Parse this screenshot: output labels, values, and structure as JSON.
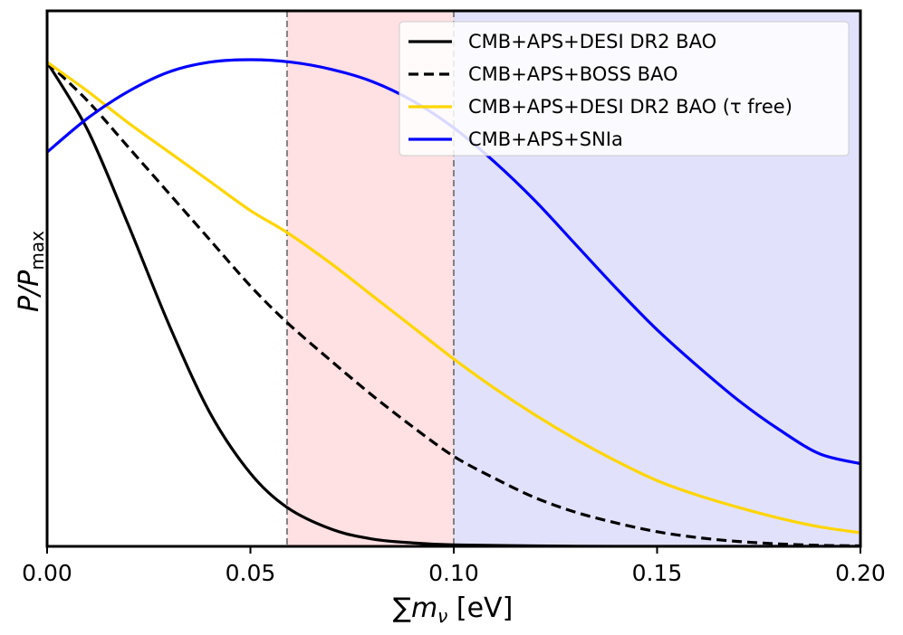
{
  "chart_data": {
    "type": "line",
    "title": "",
    "xlabel_symbol": "∑",
    "xlabel_var": "m",
    "xlabel_sub": "ν",
    "xlabel_unit": " [eV]",
    "ylabel_main": "P/P",
    "ylabel_sub": "max",
    "xlim": [
      0.0,
      0.2
    ],
    "ylim": [
      0.0,
      1.0
    ],
    "xticks": [
      0.0,
      0.05,
      0.1,
      0.15,
      0.2
    ],
    "xtick_labels": [
      "0.00",
      "0.05",
      "0.10",
      "0.15",
      "0.20"
    ],
    "yticks_visible": false,
    "shaded_regions": [
      {
        "name": "normal-ordering-region",
        "x_start": 0.059,
        "x_end": 0.1,
        "color": "#ffe0e3"
      },
      {
        "name": "inverted-ordering-region",
        "x_start": 0.1,
        "x_end": 0.2,
        "color": "#e1e1fb"
      }
    ],
    "vlines": [
      {
        "x": 0.059,
        "color": "#808080",
        "style": "dashed"
      },
      {
        "x": 0.1,
        "color": "#808080",
        "style": "dashed"
      }
    ],
    "legend_position": "top-right",
    "series": [
      {
        "name": "CMB+APS+DESI DR2 BAO",
        "color": "#000000",
        "style": "solid",
        "x": [
          0.0,
          0.01,
          0.02,
          0.03,
          0.04,
          0.05,
          0.059,
          0.07,
          0.08,
          0.09,
          0.1,
          0.12,
          0.14,
          0.16,
          0.18,
          0.2
        ],
        "y": [
          0.995,
          0.855,
          0.66,
          0.455,
          0.275,
          0.15,
          0.08,
          0.035,
          0.015,
          0.007,
          0.003,
          0.001,
          0.0,
          0.0,
          0.0,
          0.0
        ]
      },
      {
        "name": "CMB+APS+BOSS BAO",
        "color": "#000000",
        "style": "dashed",
        "x": [
          0.0,
          0.01,
          0.02,
          0.03,
          0.04,
          0.05,
          0.059,
          0.07,
          0.08,
          0.09,
          0.1,
          0.11,
          0.12,
          0.13,
          0.14,
          0.15,
          0.16,
          0.17,
          0.18,
          0.19,
          0.2
        ],
        "y": [
          0.995,
          0.915,
          0.82,
          0.725,
          0.63,
          0.535,
          0.46,
          0.38,
          0.31,
          0.245,
          0.185,
          0.14,
          0.1,
          0.07,
          0.048,
          0.03,
          0.018,
          0.01,
          0.005,
          0.002,
          0.001
        ]
      },
      {
        "name": "CMB+APS+DESI DR2 BAO (τ free)",
        "color": "#ffd500",
        "style": "solid",
        "x": [
          0.0,
          0.01,
          0.02,
          0.03,
          0.04,
          0.05,
          0.059,
          0.07,
          0.08,
          0.09,
          0.1,
          0.11,
          0.12,
          0.13,
          0.14,
          0.15,
          0.16,
          0.17,
          0.18,
          0.19,
          0.2
        ],
        "y": [
          0.995,
          0.935,
          0.87,
          0.81,
          0.75,
          0.69,
          0.645,
          0.58,
          0.515,
          0.45,
          0.385,
          0.325,
          0.27,
          0.22,
          0.175,
          0.135,
          0.105,
          0.08,
          0.058,
          0.04,
          0.028
        ]
      },
      {
        "name": "CMB+APS+SNIa",
        "color": "#0000ff",
        "style": "solid",
        "x": [
          0.0,
          0.01,
          0.02,
          0.03,
          0.04,
          0.05,
          0.06,
          0.07,
          0.08,
          0.09,
          0.1,
          0.11,
          0.12,
          0.13,
          0.14,
          0.15,
          0.16,
          0.17,
          0.18,
          0.19,
          0.2
        ],
        "y": [
          0.81,
          0.88,
          0.935,
          0.975,
          0.995,
          1.0,
          0.995,
          0.98,
          0.955,
          0.915,
          0.86,
          0.79,
          0.71,
          0.62,
          0.53,
          0.445,
          0.37,
          0.3,
          0.24,
          0.19,
          0.17
        ]
      }
    ]
  }
}
